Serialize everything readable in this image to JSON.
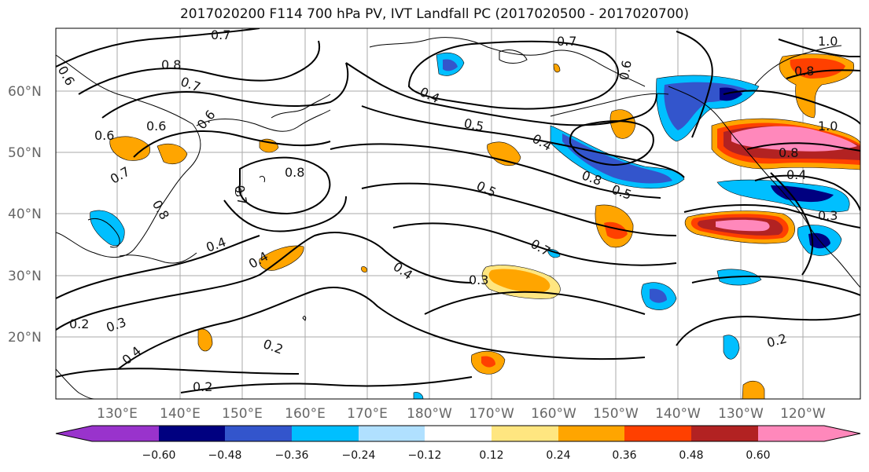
{
  "title": "2017020200 F114 700 hPa PV, IVT Landfall PC (2017020500 - 2017020700)",
  "lat_labels": [
    "60°N",
    "50°N",
    "40°N",
    "30°N",
    "20°N"
  ],
  "lon_labels": [
    "130°E",
    "140°E",
    "150°E",
    "160°E",
    "170°E",
    "180°W",
    "170°W",
    "160°W",
    "150°W",
    "140°W",
    "130°W",
    "120°W"
  ],
  "colorbar": {
    "colors": [
      "#9933cc",
      "#000080",
      "#3355cc",
      "#00bfff",
      "#b0e0ff",
      "#ffffff",
      "#ffe680",
      "#ffa500",
      "#ff4000",
      "#b22222",
      "#ff88bb"
    ],
    "ticks": [
      "−0.60",
      "−0.48",
      "−0.36",
      "−0.24",
      "−0.12",
      "0.12",
      "0.24",
      "0.36",
      "0.48",
      "0.60"
    ]
  },
  "contour_labels": [
    "0.7",
    "0.7",
    "0.8",
    "0.6",
    "0.7",
    "0.6",
    "0.4",
    "0.8",
    "0.6",
    "0.5",
    "0.4",
    "0.6",
    "0.7",
    "0.5",
    "0.8",
    "0.7",
    "0.8",
    "0.5",
    "0.4",
    "0.7",
    "0.4",
    "0.4",
    "0.3",
    "0.3",
    "0.2",
    "0.4",
    "0.2",
    "0.2",
    "1.0",
    "0.8",
    "1.0",
    "0.8",
    "0.4",
    "0.3",
    "0.2",
    "0.6"
  ]
}
